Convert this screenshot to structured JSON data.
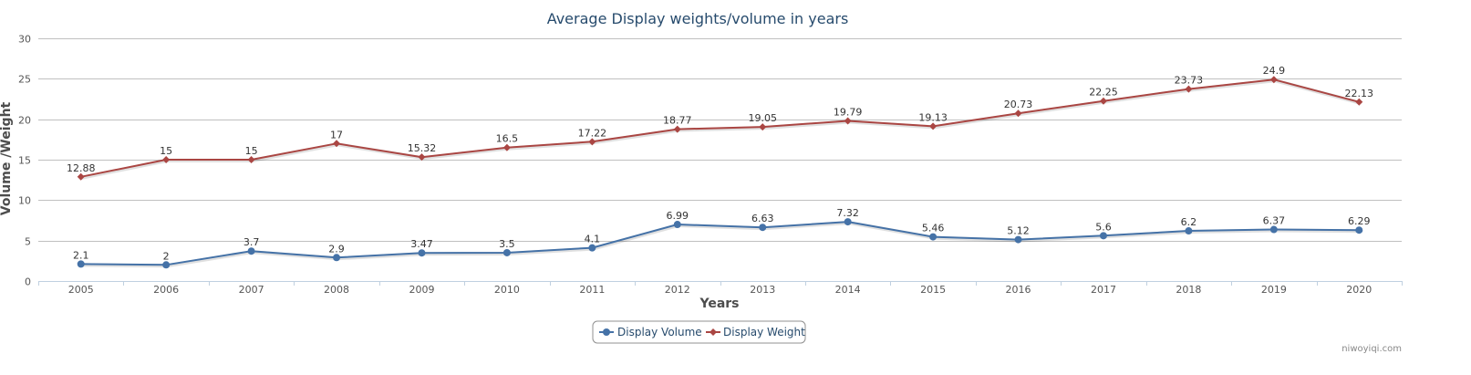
{
  "chart_data": {
    "type": "line",
    "title": "Average Display weights/volume in years",
    "xlabel": "Years",
    "ylabel": "Volume /Weight",
    "ylim": [
      0,
      30
    ],
    "yticks": [
      0,
      5,
      10,
      15,
      20,
      25,
      30
    ],
    "categories": [
      "2005",
      "2006",
      "2007",
      "2008",
      "2009",
      "2010",
      "2011",
      "2012",
      "2013",
      "2014",
      "2015",
      "2016",
      "2017",
      "2018",
      "2019",
      "2020"
    ],
    "series": [
      {
        "name": "Display Volume",
        "color": "#4572a7",
        "marker": "circle",
        "values": [
          2.1,
          2,
          3.7,
          2.9,
          3.47,
          3.5,
          4.1,
          6.99,
          6.63,
          7.32,
          5.46,
          5.12,
          5.6,
          6.2,
          6.37,
          6.29
        ],
        "labels": [
          "2.1",
          "2",
          "3.7",
          "2.9",
          "3.47",
          "3.5",
          "4.1",
          "6.99",
          "6.63",
          "7.32",
          "5.46",
          "5.12",
          "5.6",
          "6.2",
          "6.37",
          "6.29"
        ]
      },
      {
        "name": "Display Weight",
        "color": "#aa4643",
        "marker": "diamond",
        "values": [
          12.88,
          15,
          15,
          17,
          15.32,
          16.5,
          17.22,
          18.77,
          19.05,
          19.79,
          19.13,
          20.73,
          22.25,
          23.73,
          24.9,
          22.13
        ],
        "labels": [
          "12.88",
          "15",
          "15",
          "17",
          "15.32",
          "16.5",
          "17.22",
          "18.77",
          "19.05",
          "19.79",
          "19.13",
          "20.73",
          "22.25",
          "23.73",
          "24.9",
          "22.13"
        ]
      }
    ],
    "grid": true,
    "legend": "bottom-center"
  },
  "credit": "niwoyiqi.com"
}
